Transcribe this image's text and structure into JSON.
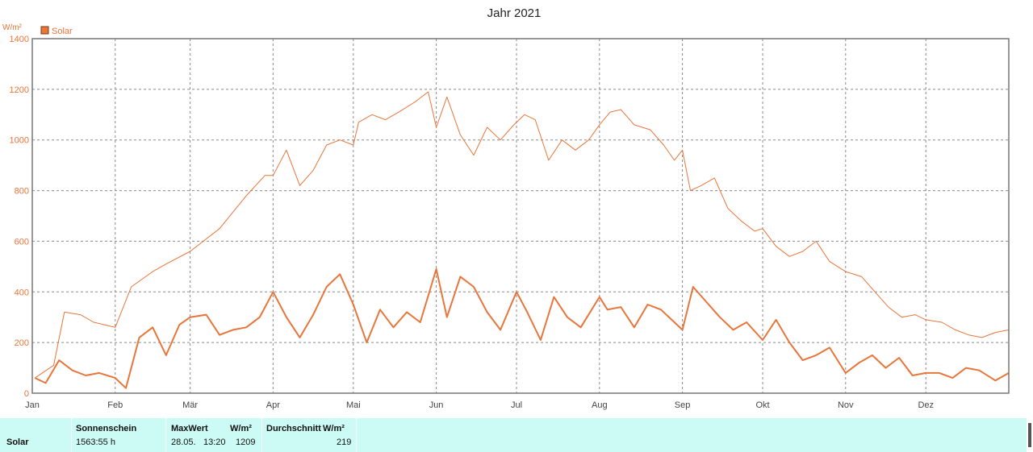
{
  "chart_data": {
    "type": "line",
    "title": "Jahr 2021",
    "ylabel": "W/m²",
    "ylim": [
      0,
      1400
    ],
    "yticks": [
      0,
      200,
      400,
      600,
      800,
      1000,
      1200,
      1400
    ],
    "xlim": [
      0,
      365
    ],
    "month_labels": [
      "Jan",
      "Feb",
      "Mär",
      "Apr",
      "Mai",
      "Jun",
      "Jul",
      "Aug",
      "Sep",
      "Okt",
      "Nov",
      "Dez"
    ],
    "month_starts": [
      0,
      31,
      59,
      90,
      120,
      151,
      181,
      212,
      243,
      273,
      304,
      334
    ],
    "grid": true,
    "legend": "top-left",
    "series": [
      {
        "name": "Solar",
        "color": "#e8753a",
        "x": [
          1,
          8,
          12,
          18,
          23,
          31,
          37,
          45,
          50,
          59,
          70,
          80,
          87,
          90,
          95,
          100,
          105,
          110,
          115,
          120,
          122,
          127,
          132,
          137,
          143,
          148,
          151,
          155,
          160,
          165,
          170,
          175,
          180,
          184,
          188,
          193,
          198,
          203,
          208,
          212,
          216,
          220,
          225,
          231,
          236,
          240,
          243,
          246,
          250,
          255,
          260,
          265,
          270,
          273,
          278,
          283,
          288,
          293,
          298,
          304,
          310,
          315,
          320,
          325,
          330,
          334,
          340,
          345,
          350,
          355,
          360,
          365
        ],
        "values": [
          60,
          110,
          320,
          310,
          280,
          260,
          420,
          480,
          510,
          560,
          650,
          780,
          860,
          860,
          960,
          820,
          880,
          980,
          1000,
          980,
          1070,
          1100,
          1080,
          1110,
          1150,
          1190,
          1050,
          1170,
          1020,
          940,
          1050,
          1000,
          1060,
          1100,
          1080,
          920,
          1000,
          960,
          1000,
          1060,
          1110,
          1120,
          1060,
          1040,
          980,
          920,
          960,
          800,
          820,
          850,
          730,
          680,
          640,
          650,
          580,
          540,
          560,
          600,
          520,
          480,
          460,
          400,
          340,
          300,
          310,
          290,
          280,
          250,
          230,
          220,
          240,
          250
        ]
      },
      {
        "name": "Solar",
        "color": "#e8753a",
        "x": [
          1,
          5,
          10,
          15,
          20,
          25,
          31,
          35,
          40,
          45,
          50,
          55,
          59,
          65,
          70,
          75,
          80,
          85,
          90,
          95,
          100,
          105,
          110,
          115,
          120,
          125,
          130,
          135,
          140,
          145,
          151,
          155,
          160,
          165,
          170,
          175,
          181,
          185,
          190,
          195,
          200,
          205,
          212,
          215,
          220,
          225,
          230,
          235,
          243,
          247,
          252,
          257,
          262,
          267,
          273,
          278,
          283,
          288,
          293,
          298,
          304,
          309,
          314,
          319,
          324,
          329,
          334,
          339,
          344,
          349,
          354,
          360,
          365
        ],
        "values": [
          60,
          40,
          130,
          90,
          70,
          80,
          60,
          20,
          220,
          260,
          150,
          270,
          300,
          310,
          230,
          250,
          260,
          300,
          400,
          300,
          220,
          310,
          420,
          470,
          350,
          200,
          330,
          260,
          320,
          280,
          490,
          300,
          460,
          420,
          320,
          250,
          400,
          320,
          210,
          380,
          300,
          260,
          380,
          330,
          340,
          260,
          350,
          330,
          250,
          420,
          360,
          300,
          250,
          280,
          210,
          290,
          200,
          130,
          150,
          180,
          80,
          120,
          150,
          100,
          140,
          70,
          80,
          80,
          60,
          100,
          90,
          50,
          80
        ]
      }
    ]
  },
  "stats": {
    "row_label": "Solar",
    "sonnenschein_header": "Sonnenschein",
    "sonnenschein_value": "1563:55 h",
    "maxwert_header": "MaxWert",
    "maxwert_unit": "W/m²",
    "maxwert_date": "28.05.",
    "maxwert_time": "13:20",
    "maxwert_value": "1209",
    "durchschnitt_header": "Durchschnitt",
    "durchschnitt_unit": "W/m²",
    "durchschnitt_value": "219"
  }
}
